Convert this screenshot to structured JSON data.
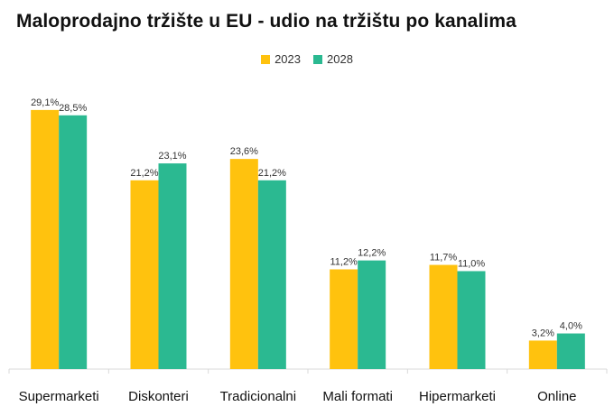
{
  "chart_data": {
    "type": "bar",
    "title": "Maloprodajno tržište u EU - udio na tržištu po kanalima",
    "categories": [
      "Supermarketi",
      "Diskonteri",
      "Tradicionalni",
      "Mali formati",
      "Hipermarketi",
      "Online"
    ],
    "series": [
      {
        "name": "2023",
        "color": "#FFC20E",
        "values": [
          29.1,
          21.2,
          23.6,
          11.2,
          11.7,
          3.2
        ],
        "labels": [
          "29,1%",
          "21,2%",
          "23,6%",
          "11,2%",
          "11,7%",
          "3,2%"
        ]
      },
      {
        "name": "2028",
        "color": "#2BB991",
        "values": [
          28.5,
          23.1,
          21.2,
          12.2,
          11.0,
          4.0
        ],
        "labels": [
          "28,5%",
          "23,1%",
          "21,2%",
          "12,2%",
          "11,0%",
          "4,0%"
        ]
      }
    ],
    "xlabel": "",
    "ylabel": "",
    "ylim": [
      0,
      30
    ],
    "grid": false,
    "legend_position": "top-center"
  }
}
